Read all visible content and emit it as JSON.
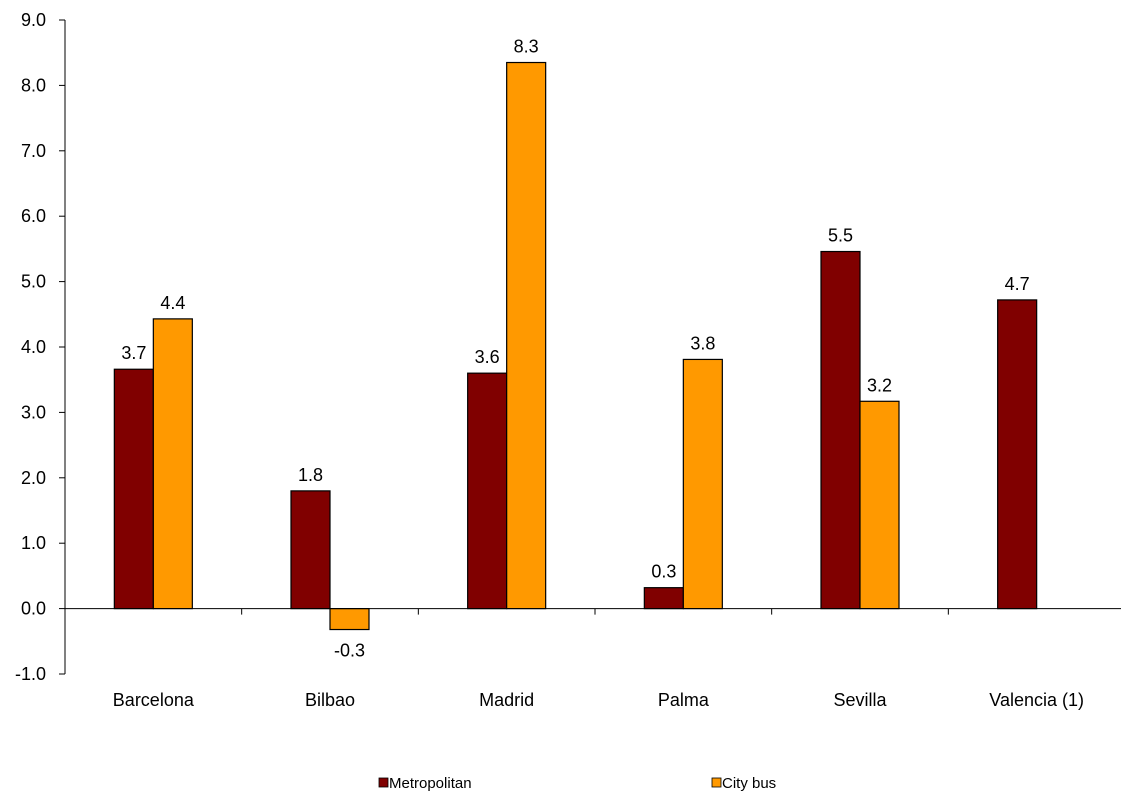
{
  "chart_data": {
    "type": "bar",
    "categories": [
      "Barcelona",
      "Bilbao",
      "Madrid",
      "Palma",
      "Sevilla",
      "Valencia (1)"
    ],
    "series": [
      {
        "name": "Metropolitan",
        "color": "#800000",
        "values": [
          3.66,
          1.8,
          3.6,
          0.32,
          5.46,
          4.72
        ],
        "labels": [
          "3.7",
          "1.8",
          "3.6",
          "0.3",
          "5.5",
          "4.7"
        ]
      },
      {
        "name": "City bus",
        "color": "#FF9900",
        "values": [
          4.43,
          -0.32,
          8.35,
          3.81,
          3.17,
          null
        ],
        "labels": [
          "4.4",
          "-0.3",
          "8.3",
          "3.8",
          "3.2",
          ""
        ]
      }
    ],
    "ylim": [
      -1.0,
      9.0
    ],
    "yticks": [
      "-1.0",
      "0.0",
      "1.0",
      "2.0",
      "3.0",
      "4.0",
      "5.0",
      "6.0",
      "7.0",
      "8.0",
      "9.0"
    ],
    "legend_position": "bottom",
    "grid": false
  }
}
